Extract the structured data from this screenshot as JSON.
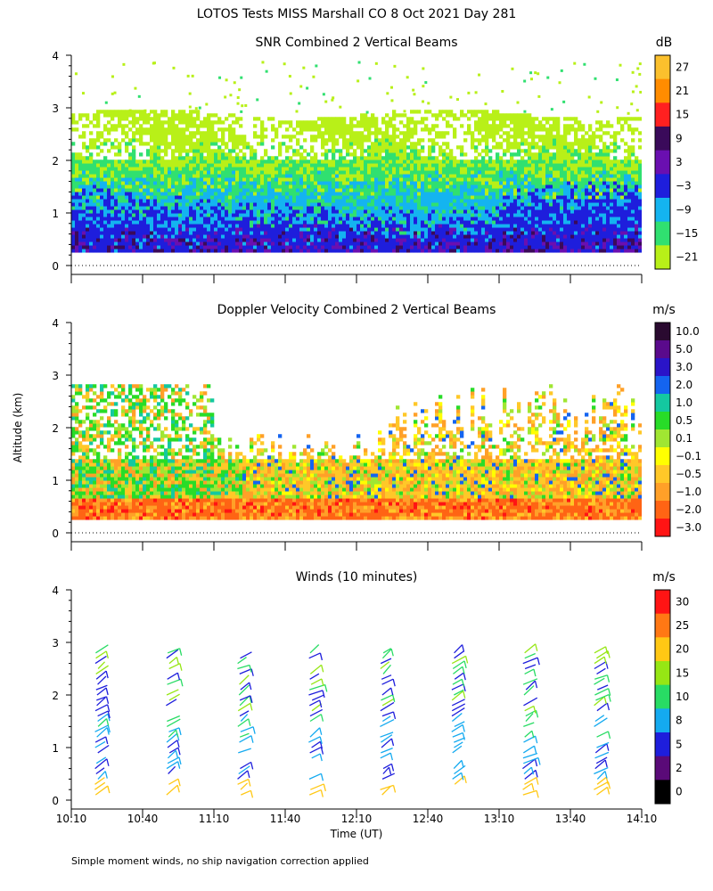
{
  "title": "LOTOS Tests MISS Marshall CO   8 Oct 2021 Day 281",
  "ylabel": "Altitude (km)",
  "xlabel": "Time (UT)",
  "footnote": "Simple moment winds, no ship navigation correction applied",
  "x_ticks": [
    "10:10",
    "10:40",
    "11:10",
    "11:40",
    "12:10",
    "12:40",
    "13:10",
    "13:40",
    "14:10"
  ],
  "y_ticks": [
    "0",
    "1",
    "2",
    "3",
    "4"
  ],
  "chart_data": [
    {
      "type": "heatmap",
      "title": "SNR Combined 2 Vertical Beams",
      "xlabel": "Time (UT)",
      "ylabel": "Altitude (km)",
      "xlim": [
        "10:10",
        "14:10"
      ],
      "ylim": [
        0,
        4
      ],
      "colorbar": {
        "unit": "dB",
        "labels": [
          "27",
          "21",
          "15",
          "9",
          "3",
          "−3",
          "−9",
          "−15",
          "−21"
        ],
        "colors": [
          "#fbc02d",
          "#ff8c00",
          "#ff2020",
          "#3a0a5a",
          "#6a0fb0",
          "#1e1edc",
          "#14b4f0",
          "#30e070",
          "#b8f018"
        ]
      },
      "description_layers": [
        {
          "level": "-21 to -15 dB",
          "altitude_km": [
            2.0,
            2.9
          ]
        },
        {
          "level": "-15 to -9 dB",
          "altitude_km": [
            1.3,
            2.0
          ]
        },
        {
          "level": "-9 to -3 dB",
          "altitude_km": [
            0.9,
            1.3
          ]
        },
        {
          "level": "-3 to 9 dB",
          "altitude_km": [
            0.25,
            0.9
          ]
        }
      ]
    },
    {
      "type": "heatmap",
      "title": "Doppler Velocity Combined 2 Vertical Beams",
      "xlabel": "Time (UT)",
      "ylabel": "Altitude (km)",
      "xlim": [
        "10:10",
        "14:10"
      ],
      "ylim": [
        0,
        4
      ],
      "colorbar": {
        "unit": "m/s",
        "labels": [
          "10.0",
          "5.0",
          "3.0",
          "2.0",
          "1.0",
          "0.5",
          "0.1",
          "−0.1",
          "−0.5",
          "−1.0",
          "−2.0",
          "−3.0"
        ],
        "colors": [
          "#2a0a30",
          "#5a0a8c",
          "#2a14c8",
          "#1464f0",
          "#14c8a0",
          "#28dc28",
          "#a0e632",
          "#ffff00",
          "#ffc828",
          "#ffa028",
          "#ff6414",
          "#ff1414"
        ]
      }
    },
    {
      "type": "scatter",
      "title": "Winds (10 minutes)",
      "xlabel": "Time (UT)",
      "ylabel": "Altitude (km)",
      "xlim": [
        "10:10",
        "14:10"
      ],
      "ylim": [
        0,
        4
      ],
      "colorbar": {
        "unit": "m/s",
        "labels": [
          "30",
          "25",
          "20",
          "15",
          "10",
          "8",
          "5",
          "2",
          "0"
        ],
        "colors": [
          "#ff1414",
          "#ff7814",
          "#ffc814",
          "#96e614",
          "#28dc64",
          "#14aaf0",
          "#1e1edc",
          "#5a0a78",
          "#000000"
        ]
      },
      "profile_times": [
        "10:30",
        "11:00",
        "11:30",
        "12:00",
        "12:30",
        "13:00",
        "13:30",
        "14:00"
      ]
    }
  ]
}
